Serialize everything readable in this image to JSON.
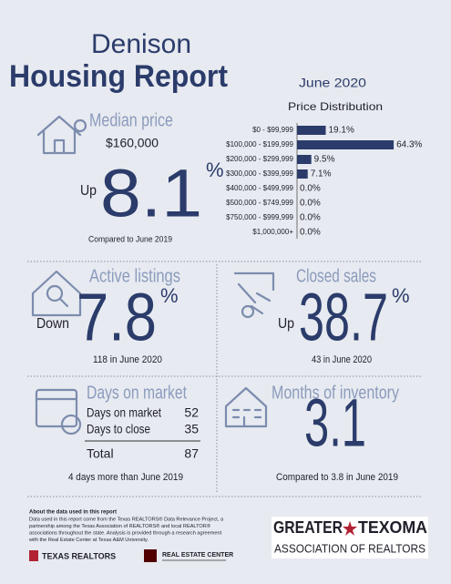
{
  "header": {
    "title_line1": "Denison",
    "title_line2": "Housing Report",
    "date": "June 2020"
  },
  "price_distribution": {
    "type": "bar",
    "title": "Price Distribution",
    "categories": [
      "$0 - $99,999",
      "$100,000 - $199,999",
      "$200,000 - $299,999",
      "$300,000 - $399,999",
      "$400,000 - $499,999",
      "$500,000 - $749,999",
      "$750,000 - $999,999",
      "$1,000,000+"
    ],
    "values": [
      19.1,
      64.3,
      9.5,
      7.1,
      0,
      0,
      0,
      0
    ],
    "value_labels": [
      "19.1%",
      "64.3%",
      "9.5%",
      "7.1%",
      "0.0%",
      "0.0%",
      "0.0%",
      "0.0%"
    ],
    "color": "#2b3c6b"
  },
  "median_price": {
    "title": "Median price",
    "value": "$160,000",
    "direction": "Up",
    "change": 8.1,
    "unit": "%",
    "note": "Compared to June 2019"
  },
  "active_listings": {
    "title": "Active listings",
    "direction": "Down",
    "change": 7.8,
    "unit": "%",
    "note": "118 in June 2020"
  },
  "closed_sales": {
    "title": "Closed sales",
    "direction": "Up",
    "change": 38.7,
    "unit": "%",
    "note": "43 in June 2020"
  },
  "days_on_market": {
    "title": "Days on market",
    "rows": [
      [
        "Days on market",
        52
      ],
      [
        "Days to close",
        35
      ]
    ],
    "total": [
      "Total",
      87
    ],
    "note": "4 days more than June 2019"
  },
  "months_of_inventory": {
    "title": "Months of inventory",
    "value": 3.1,
    "note": "Compared to 3.8 in June 2019"
  },
  "about": {
    "title": "About the data used in this report",
    "lines": [
      "Data used in this report come from the Texas REALTORS® Data Relevance Project, a",
      "partnership among the Texas Association of REALTORS® and local REALTOR®",
      "associations throughout the state. Analysis is provided through a research agreement",
      "with the Real Estate Center at Texas A&M University."
    ]
  },
  "logos": {
    "texas_realtors": "TEXAS REALTORS",
    "real_estate_center": "REAL ESTATE CENTER",
    "greater": "GREATER",
    "texoma": "TEXOMA",
    "association": "ASSOCIATION OF REALTORS"
  }
}
